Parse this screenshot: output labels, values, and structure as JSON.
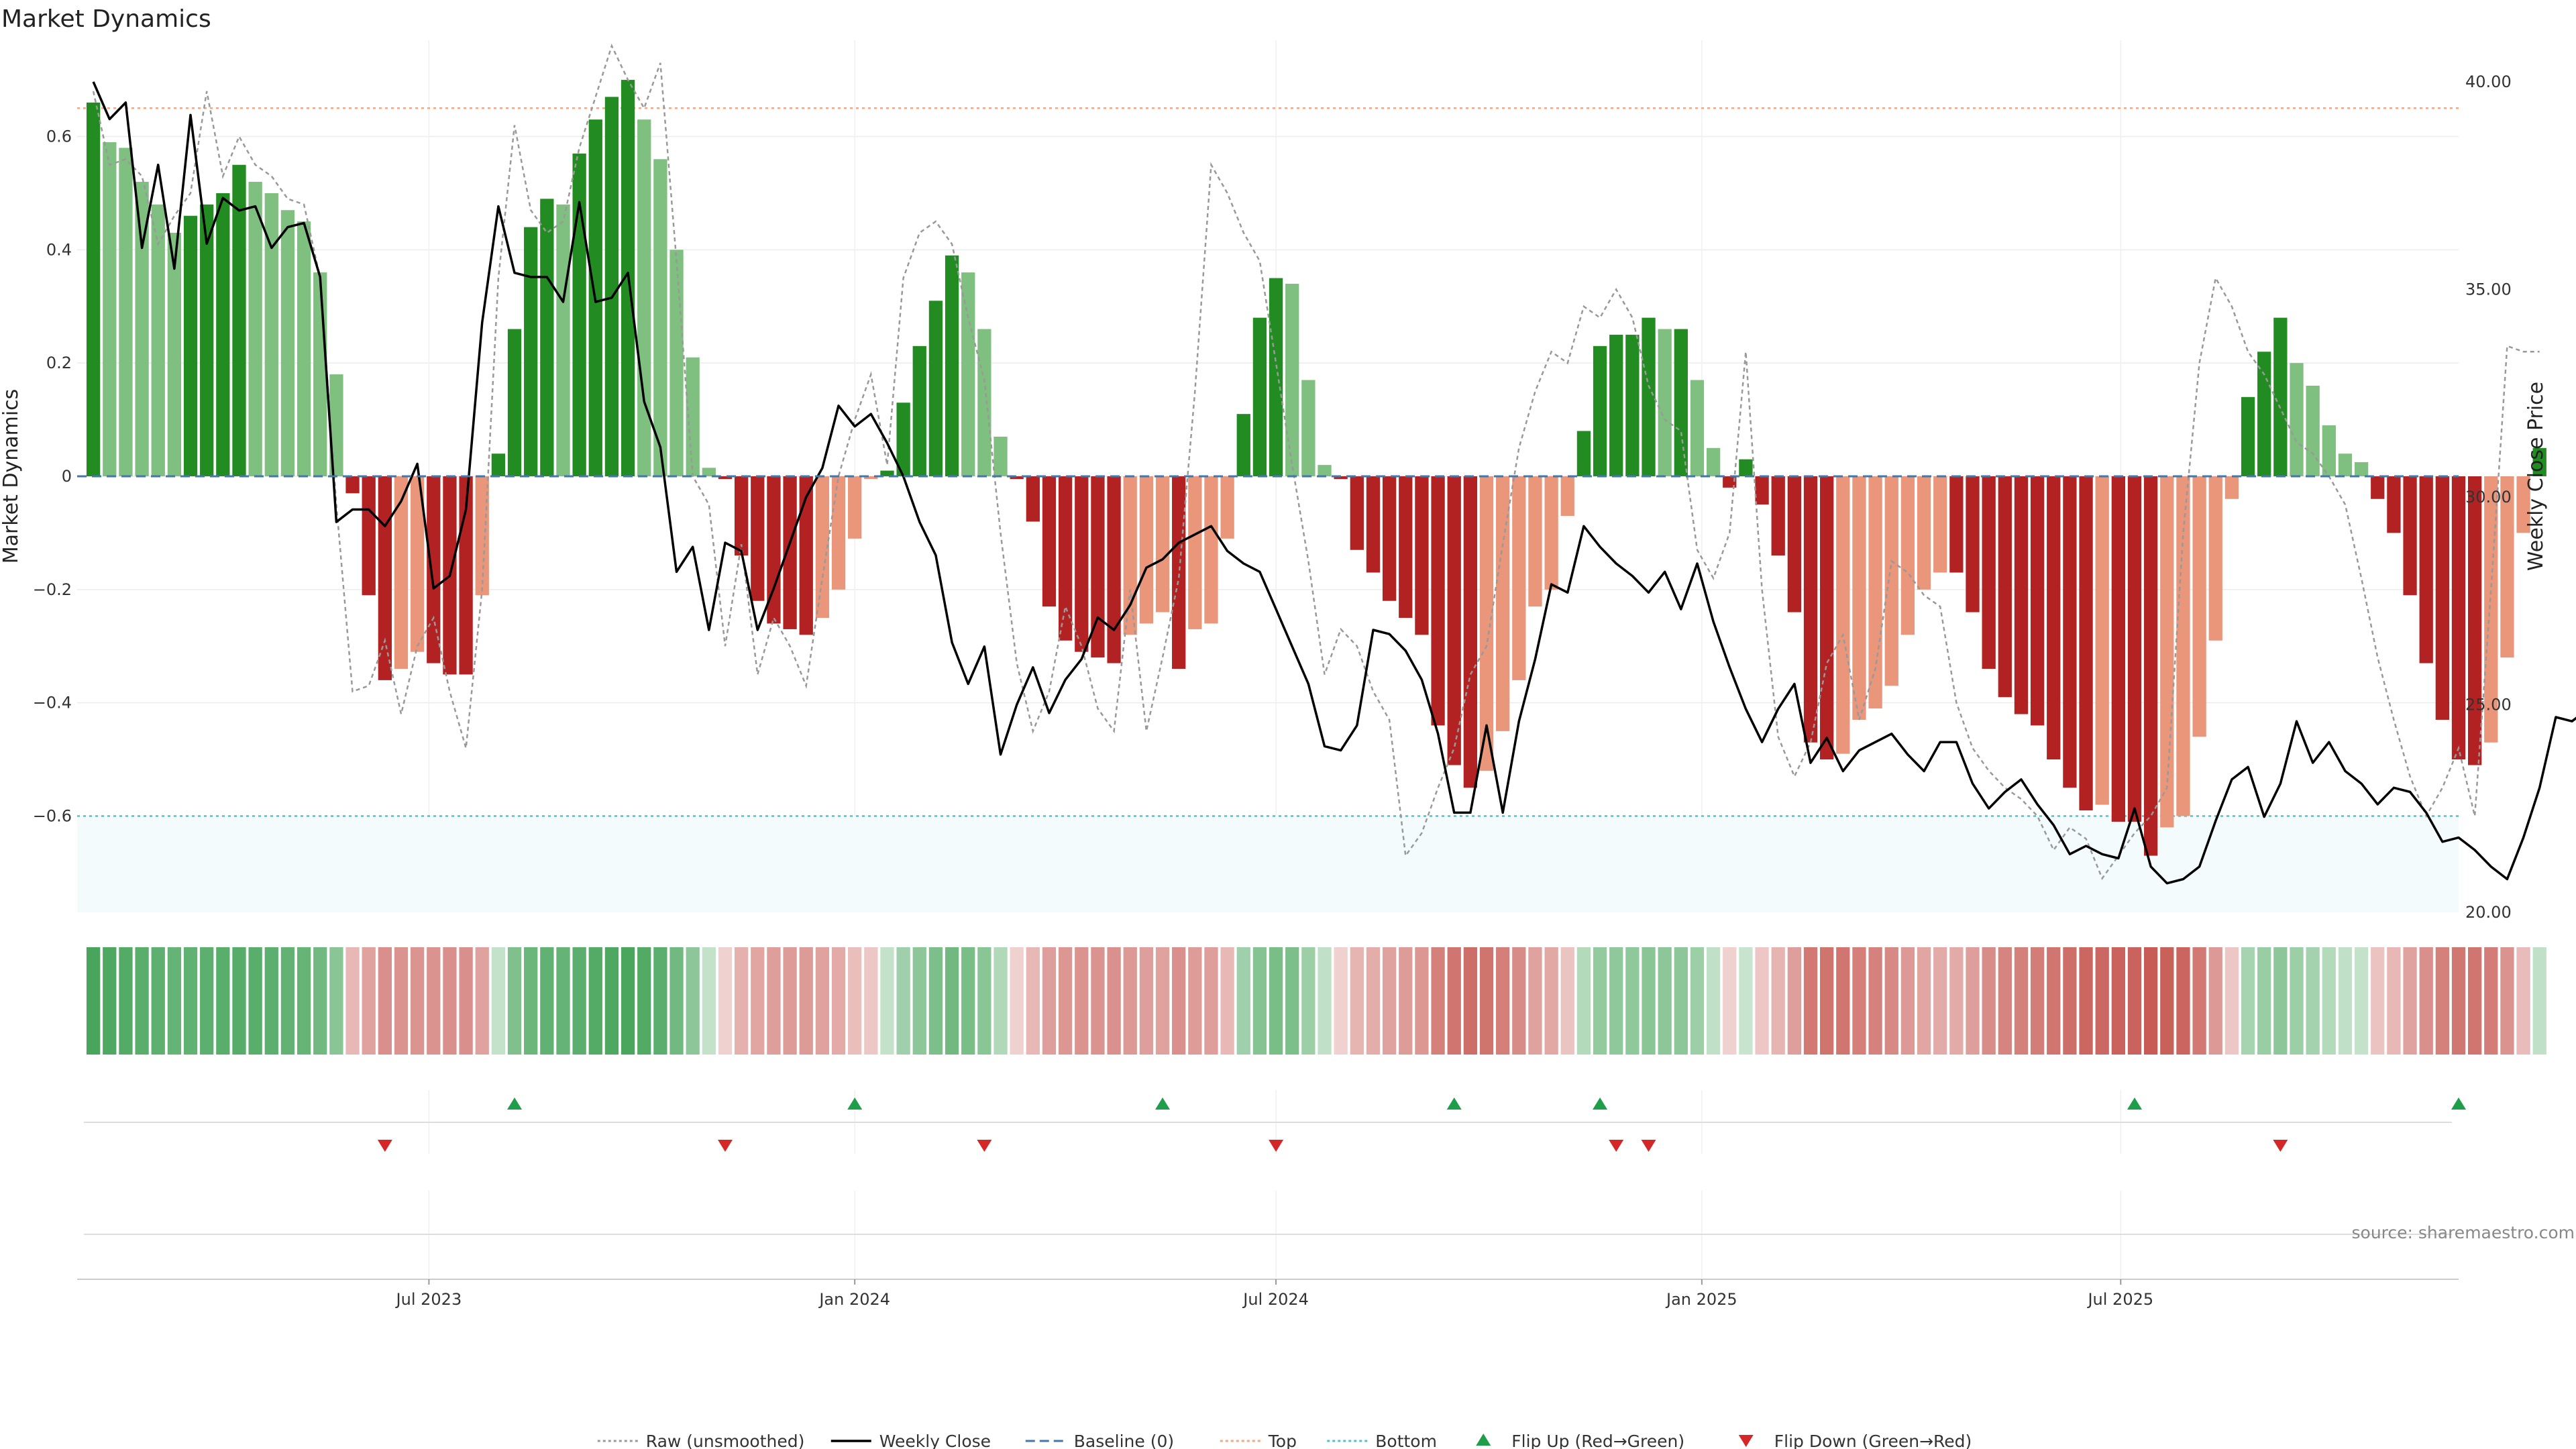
{
  "chart_data": {
    "type": "bar",
    "title": "Market Dynamics",
    "ylabel_left": "Market Dynamics",
    "ylabel_right": "Weekly Close Price",
    "ylim_left": [
      -0.77,
      0.77
    ],
    "ylim_right": [
      20.0,
      41.0
    ],
    "yticks_left": [
      -0.6,
      -0.4,
      -0.2,
      0,
      0.2,
      0.4,
      0.6
    ],
    "yticks_left_labels": [
      "−0.6",
      "−0.4",
      "−0.2",
      "0",
      "0.2",
      "0.4",
      "0.6"
    ],
    "yticks_right": [
      20.0,
      25.0,
      30.0,
      35.0,
      40.0
    ],
    "yticks_right_labels": [
      "20.00",
      "25.00",
      "30.00",
      "35.00",
      "40.00"
    ],
    "x_range": [
      "2023-01-30",
      "2025-11-24"
    ],
    "week_start": "2023-02-06",
    "xticks": [
      {
        "date": "2023-07-01",
        "label": "Jul 2023"
      },
      {
        "date": "2024-01-01",
        "label": "Jan 2024"
      },
      {
        "date": "2024-07-01",
        "label": "Jul 2024"
      },
      {
        "date": "2025-01-01",
        "label": "Jan 2025"
      },
      {
        "date": "2025-07-01",
        "label": "Jul 2025"
      }
    ],
    "top_level": 0.65,
    "bottom_level": -0.6,
    "baseline": 0,
    "grid": true,
    "legend_position": "bottom",
    "colors": {
      "green_strong": "#228B22",
      "green_light": "#7FBF7F",
      "red_strong": "#B22222",
      "red_light": "#E9967A",
      "close": "#000000",
      "raw": "#999999",
      "baseline": "#4477AA",
      "top": "#F4A582",
      "bottom": "#4FC3C7",
      "flip_up": "#1E9E4A",
      "flip_down": "#D62728"
    },
    "series": [
      {
        "name": "Market Dynamics",
        "values": [
          0.66,
          0.59,
          0.58,
          0.52,
          0.48,
          0.43,
          0.46,
          0.48,
          0.5,
          0.55,
          0.52,
          0.5,
          0.47,
          0.45,
          0.36,
          0.18,
          -0.03,
          -0.21,
          -0.36,
          -0.34,
          -0.31,
          -0.33,
          -0.35,
          -0.35,
          -0.21,
          0.04,
          0.26,
          0.44,
          0.49,
          0.48,
          0.57,
          0.63,
          0.67,
          0.7,
          0.63,
          0.56,
          0.4,
          0.21,
          0.015,
          -0.005,
          -0.14,
          -0.22,
          -0.26,
          -0.27,
          -0.28,
          -0.25,
          -0.2,
          -0.11,
          -0.005,
          0.01,
          0.13,
          0.23,
          0.31,
          0.39,
          0.36,
          0.26,
          0.07,
          -0.005,
          -0.08,
          -0.23,
          -0.29,
          -0.31,
          -0.32,
          -0.33,
          -0.28,
          -0.26,
          -0.24,
          -0.34,
          -0.27,
          -0.26,
          -0.11,
          0.11,
          0.28,
          0.35,
          0.34,
          0.17,
          0.02,
          -0.005,
          -0.13,
          -0.17,
          -0.22,
          -0.25,
          -0.28,
          -0.44,
          -0.51,
          -0.55,
          -0.52,
          -0.45,
          -0.36,
          -0.23,
          -0.2,
          -0.07,
          0.08,
          0.23,
          0.25,
          0.25,
          0.28,
          0.26,
          0.26,
          0.17,
          0.05,
          -0.02,
          0.03,
          -0.05,
          -0.14,
          -0.24,
          -0.47,
          -0.5,
          -0.49,
          -0.43,
          -0.41,
          -0.37,
          -0.28,
          -0.2,
          -0.17,
          -0.17,
          -0.24,
          -0.34,
          -0.39,
          -0.42,
          -0.44,
          -0.5,
          -0.55,
          -0.59,
          -0.58,
          -0.61,
          -0.61,
          -0.67,
          -0.62,
          -0.6,
          -0.46,
          -0.29,
          -0.04,
          0.14,
          0.22,
          0.28,
          0.2,
          0.16,
          0.09,
          0.04,
          0.025,
          -0.04,
          -0.1,
          -0.21,
          -0.33,
          -0.43,
          -0.5,
          -0.51,
          -0.47,
          -0.32,
          -0.1,
          0.05
        ]
      },
      {
        "name": "Weekly Close",
        "values": [
          40.0,
          39.1,
          39.5,
          36.0,
          38.0,
          35.5,
          39.2,
          36.1,
          37.2,
          36.9,
          37.0,
          36.0,
          36.5,
          36.6,
          35.3,
          29.4,
          29.7,
          29.7,
          29.3,
          29.9,
          30.8,
          27.8,
          28.1,
          29.7,
          34.2,
          37.0,
          35.4,
          35.3,
          35.3,
          34.7,
          37.1,
          34.7,
          34.8,
          35.4,
          32.3,
          31.2,
          28.2,
          28.8,
          26.8,
          28.9,
          28.7,
          26.8,
          27.8,
          28.9,
          30.0,
          30.7,
          32.2,
          31.7,
          32.0,
          31.3,
          30.5,
          29.4,
          28.6,
          26.5,
          25.5,
          26.4,
          23.8,
          25.0,
          25.9,
          24.8,
          25.6,
          26.1,
          27.1,
          26.8,
          27.4,
          28.3,
          28.5,
          28.9,
          29.1,
          29.3,
          28.7,
          28.4,
          28.2,
          27.3,
          26.4,
          25.5,
          24.0,
          23.9,
          24.5,
          26.8,
          26.7,
          26.3,
          25.6,
          24.3,
          22.4,
          22.4,
          24.5,
          22.4,
          24.6,
          26.1,
          27.9,
          27.7,
          29.3,
          28.8,
          28.4,
          28.1,
          27.7,
          28.2,
          27.3,
          28.4,
          27.0,
          25.9,
          24.9,
          24.1,
          24.9,
          25.5,
          23.6,
          24.2,
          23.4,
          23.9,
          24.1,
          24.3,
          23.8,
          23.4,
          24.1,
          24.1,
          23.1,
          22.5,
          22.9,
          23.2,
          22.6,
          22.1,
          21.4,
          21.6,
          21.4,
          21.3,
          22.5,
          21.1,
          20.7,
          20.8,
          21.1,
          22.2,
          23.2,
          23.5,
          22.3,
          23.1,
          24.6,
          23.6,
          24.1,
          23.4,
          23.1,
          22.6,
          23.0,
          22.9,
          22.4,
          21.7,
          21.8,
          21.5,
          21.1,
          20.8,
          21.8,
          23.0,
          24.7,
          24.6,
          24.9,
          24.9
        ]
      },
      {
        "name": "Raw (unsmoothed)",
        "values": [
          0.68,
          0.55,
          0.56,
          0.53,
          0.41,
          0.46,
          0.5,
          0.68,
          0.53,
          0.6,
          0.55,
          0.53,
          0.49,
          0.48,
          0.35,
          -0.05,
          -0.38,
          -0.37,
          -0.29,
          -0.42,
          -0.3,
          -0.25,
          -0.38,
          -0.48,
          -0.2,
          0.35,
          0.62,
          0.47,
          0.43,
          0.45,
          0.58,
          0.67,
          0.76,
          0.7,
          0.65,
          0.73,
          0.38,
          0.0,
          -0.05,
          -0.3,
          -0.12,
          -0.35,
          -0.25,
          -0.3,
          -0.37,
          -0.18,
          -0.0,
          0.1,
          0.18,
          0.02,
          0.35,
          0.43,
          0.45,
          0.41,
          0.28,
          0.17,
          -0.1,
          -0.33,
          -0.45,
          -0.38,
          -0.23,
          -0.3,
          -0.41,
          -0.45,
          -0.2,
          -0.45,
          -0.32,
          -0.18,
          0.15,
          0.55,
          0.5,
          0.43,
          0.38,
          0.2,
          0.02,
          -0.15,
          -0.35,
          -0.27,
          -0.3,
          -0.38,
          -0.43,
          -0.67,
          -0.63,
          -0.55,
          -0.48,
          -0.35,
          -0.3,
          -0.12,
          0.05,
          0.15,
          0.22,
          0.2,
          0.3,
          0.28,
          0.33,
          0.28,
          0.16,
          0.1,
          0.08,
          -0.13,
          -0.18,
          -0.1,
          0.22,
          -0.2,
          -0.46,
          -0.53,
          -0.47,
          -0.33,
          -0.28,
          -0.43,
          -0.34,
          -0.15,
          -0.17,
          -0.21,
          -0.23,
          -0.4,
          -0.48,
          -0.52,
          -0.55,
          -0.57,
          -0.6,
          -0.66,
          -0.62,
          -0.64,
          -0.71,
          -0.67,
          -0.63,
          -0.6,
          -0.55,
          -0.1,
          0.2,
          0.35,
          0.3,
          0.22,
          0.18,
          0.12,
          0.06,
          0.04,
          0.0,
          -0.05,
          -0.18,
          -0.32,
          -0.43,
          -0.53,
          -0.6,
          -0.55,
          -0.48,
          -0.6,
          -0.2,
          0.23,
          0.22,
          0.22
        ]
      }
    ],
    "strip_intensity": [
      0.93,
      0.9,
      0.87,
      0.84,
      0.81,
      0.78,
      0.8,
      0.82,
      0.84,
      0.86,
      0.84,
      0.82,
      0.79,
      0.77,
      0.72,
      0.6,
      0.38,
      0.5,
      0.6,
      0.58,
      0.57,
      0.58,
      0.6,
      0.6,
      0.5,
      0.3,
      0.65,
      0.75,
      0.8,
      0.78,
      0.83,
      0.87,
      0.9,
      0.92,
      0.88,
      0.83,
      0.72,
      0.58,
      0.3,
      0.25,
      0.42,
      0.48,
      0.52,
      0.53,
      0.54,
      0.5,
      0.45,
      0.35,
      0.3,
      0.3,
      0.48,
      0.58,
      0.66,
      0.72,
      0.68,
      0.6,
      0.4,
      0.25,
      0.38,
      0.52,
      0.56,
      0.58,
      0.58,
      0.59,
      0.55,
      0.52,
      0.5,
      0.6,
      0.53,
      0.52,
      0.38,
      0.48,
      0.62,
      0.68,
      0.66,
      0.5,
      0.32,
      0.25,
      0.4,
      0.44,
      0.5,
      0.53,
      0.56,
      0.68,
      0.74,
      0.78,
      0.75,
      0.69,
      0.62,
      0.5,
      0.47,
      0.32,
      0.38,
      0.55,
      0.57,
      0.57,
      0.6,
      0.58,
      0.58,
      0.5,
      0.32,
      0.25,
      0.28,
      0.3,
      0.4,
      0.52,
      0.72,
      0.75,
      0.74,
      0.69,
      0.67,
      0.63,
      0.55,
      0.48,
      0.45,
      0.45,
      0.52,
      0.62,
      0.66,
      0.68,
      0.7,
      0.74,
      0.78,
      0.82,
      0.81,
      0.84,
      0.84,
      0.88,
      0.85,
      0.83,
      0.72,
      0.55,
      0.3,
      0.45,
      0.52,
      0.58,
      0.5,
      0.46,
      0.38,
      0.32,
      0.3,
      0.32,
      0.38,
      0.5,
      0.6,
      0.68,
      0.73,
      0.74,
      0.7,
      0.58,
      0.36,
      0.32
    ],
    "flip_up_dates": [
      "2023-08-07",
      "2024-01-01",
      "2024-05-13",
      "2024-09-16",
      "2024-11-18",
      "2025-07-07",
      "2025-11-24"
    ],
    "flip_down_dates": [
      "2023-06-12",
      "2023-11-06",
      "2024-02-26",
      "2024-07-01",
      "2024-11-25",
      "2024-12-09",
      "2025-09-08"
    ]
  },
  "legend": {
    "items": [
      {
        "label": "Raw (unsmoothed)",
        "kind": "dotted-line",
        "color": "#999999"
      },
      {
        "label": "Weekly Close",
        "kind": "solid-line",
        "color": "#000000"
      },
      {
        "label": "Baseline (0)",
        "kind": "dashed-line",
        "color": "#4477AA"
      },
      {
        "label": "Top",
        "kind": "dotted-line",
        "color": "#F4A582"
      },
      {
        "label": "Bottom",
        "kind": "dotted-line",
        "color": "#4FC3C7"
      },
      {
        "label": "Flip Up (Red→Green)",
        "kind": "triangle-up",
        "color": "#1E9E4A"
      },
      {
        "label": "Flip Down (Green→Red)",
        "kind": "triangle-down",
        "color": "#D62728"
      }
    ]
  },
  "source": "source: sharemaestro.com"
}
